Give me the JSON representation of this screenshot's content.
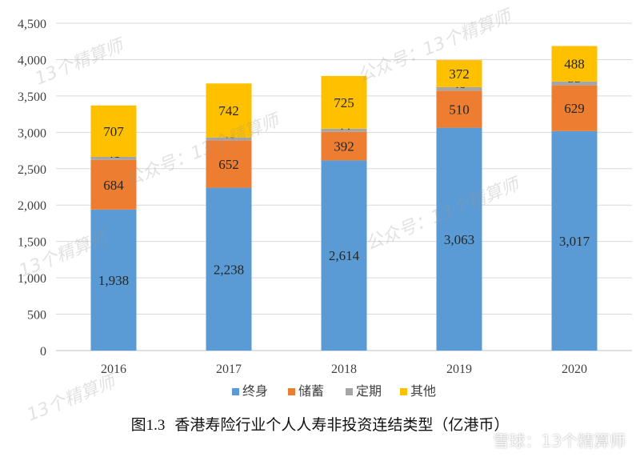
{
  "chart_data": {
    "type": "bar",
    "stacked": true,
    "categories": [
      "2016",
      "2017",
      "2018",
      "2019",
      "2020"
    ],
    "series": [
      {
        "name": "终身",
        "color": "#5B9BD5",
        "values": [
          1938,
          2238,
          2614,
          3063,
          3017
        ]
      },
      {
        "name": "储蓄",
        "color": "#ED7D31",
        "values": [
          684,
          652,
          392,
          510,
          629
        ]
      },
      {
        "name": "定期",
        "color": "#A5A5A5",
        "values": [
          41,
          40,
          44,
          48,
          53
        ]
      },
      {
        "name": "其他",
        "color": "#FFC000",
        "values": [
          707,
          742,
          725,
          372,
          488
        ]
      }
    ],
    "data_labels": [
      [
        "1,938",
        "2,238",
        "2,614",
        "3,063",
        "3,017"
      ],
      [
        "684",
        "652",
        "392",
        "510",
        "629"
      ],
      [
        "41",
        "40",
        "44",
        "48",
        "53"
      ],
      [
        "707",
        "742",
        "725",
        "372",
        "488"
      ]
    ],
    "ylim": [
      0,
      4500
    ],
    "yticks": [
      0,
      500,
      1000,
      1500,
      2000,
      2500,
      3000,
      3500,
      4000,
      4500
    ],
    "ytick_labels": [
      "0",
      "500",
      "1,000",
      "1,500",
      "2,000",
      "2,500",
      "3,000",
      "3,500",
      "4,000",
      "4,500"
    ],
    "grid": true,
    "legend_position": "bottom"
  },
  "caption": {
    "prefix": "图",
    "number": "1.3",
    "text": "香港寿险行业个人人寿非投资连结类型（亿港币）"
  },
  "watermarks": [
    "公众号：13个精算师",
    "13个精算师",
    "公众号：13个精算师",
    "13个精算师",
    "公众号：13个精算师",
    "13个精算师"
  ],
  "corner_logo": "雪球：13个精算师"
}
